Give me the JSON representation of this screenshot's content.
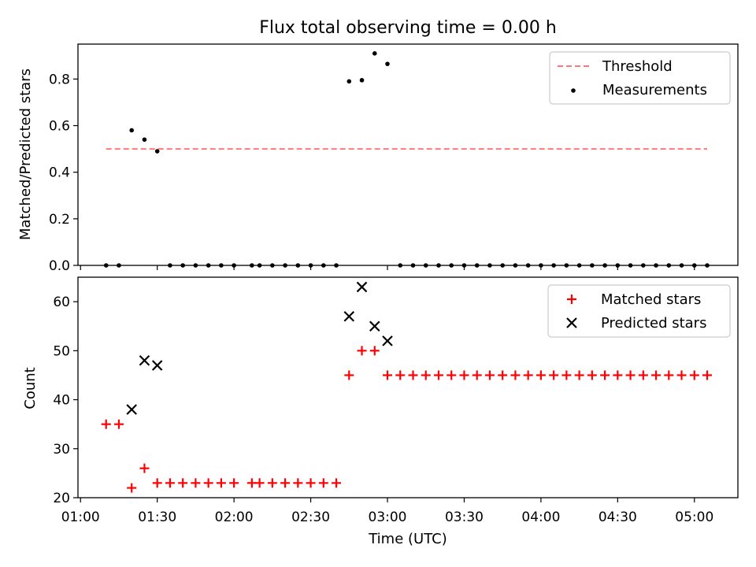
{
  "chart_data": [
    {
      "type": "scatter",
      "title": "Flux total observing time = 0.00 h",
      "ylabel": "Matched/Predicted stars",
      "xlabel": "",
      "ylim": [
        0,
        0.95
      ],
      "yticks": [
        0.0,
        0.2,
        0.4,
        0.6,
        0.8
      ],
      "ytick_labels": [
        "0.0",
        "0.2",
        "0.4",
        "0.6",
        "0.8"
      ],
      "legend_position": "top-right",
      "threshold": {
        "name": "Threshold",
        "value": 0.5,
        "x_range": [
          "01:10",
          "05:05"
        ],
        "color": "#ff7777"
      },
      "series": [
        {
          "name": "Measurements",
          "color": "#000000",
          "marker": "dot",
          "x": [
            "01:10",
            "01:15",
            "01:20",
            "01:25",
            "01:30",
            "01:35",
            "01:40",
            "01:45",
            "01:50",
            "01:55",
            "02:00",
            "02:07",
            "02:10",
            "02:15",
            "02:20",
            "02:25",
            "02:30",
            "02:35",
            "02:40",
            "02:45",
            "02:50",
            "02:55",
            "03:00",
            "03:05",
            "03:10",
            "03:15",
            "03:20",
            "03:25",
            "03:30",
            "03:35",
            "03:40",
            "03:45",
            "03:50",
            "03:55",
            "04:00",
            "04:05",
            "04:10",
            "04:15",
            "04:20",
            "04:25",
            "04:30",
            "04:35",
            "04:40",
            "04:45",
            "04:50",
            "04:55",
            "05:00",
            "05:05"
          ],
          "y": [
            0,
            0,
            0.58,
            0.54,
            0.49,
            0,
            0,
            0,
            0,
            0,
            0,
            0,
            0,
            0,
            0,
            0,
            0,
            0,
            0,
            0.79,
            0.795,
            0.91,
            0.865,
            0,
            0,
            0,
            0,
            0,
            0,
            0,
            0,
            0,
            0,
            0,
            0,
            0,
            0,
            0,
            0,
            0,
            0,
            0,
            0,
            0,
            0,
            0,
            0,
            0
          ]
        }
      ]
    },
    {
      "type": "scatter",
      "title": "",
      "ylabel": "Count",
      "xlabel": "Time (UTC)",
      "ylim": [
        20,
        65
      ],
      "yticks": [
        20,
        30,
        40,
        50,
        60
      ],
      "ytick_labels": [
        "20",
        "30",
        "40",
        "50",
        "60"
      ],
      "xlim": [
        "00:59",
        "05:17"
      ],
      "xticks": [
        "01:00",
        "01:30",
        "02:00",
        "02:30",
        "03:00",
        "03:30",
        "04:00",
        "04:30",
        "05:00"
      ],
      "xtick_labels": [
        "01:00",
        "01:30",
        "02:00",
        "02:30",
        "03:00",
        "03:30",
        "04:00",
        "04:30",
        "05:00"
      ],
      "legend_position": "top-right",
      "series": [
        {
          "name": "Matched stars",
          "color": "#ff0000",
          "marker": "plus",
          "x": [
            "01:10",
            "01:15",
            "01:20",
            "01:25",
            "01:30",
            "01:35",
            "01:40",
            "01:45",
            "01:50",
            "01:55",
            "02:00",
            "02:07",
            "02:10",
            "02:15",
            "02:20",
            "02:25",
            "02:30",
            "02:35",
            "02:40",
            "02:45",
            "02:50",
            "02:55",
            "03:00",
            "03:05",
            "03:10",
            "03:15",
            "03:20",
            "03:25",
            "03:30",
            "03:35",
            "03:40",
            "03:45",
            "03:50",
            "03:55",
            "04:00",
            "04:05",
            "04:10",
            "04:15",
            "04:20",
            "04:25",
            "04:30",
            "04:35",
            "04:40",
            "04:45",
            "04:50",
            "04:55",
            "05:00",
            "05:05"
          ],
          "y": [
            35,
            35,
            22,
            26,
            23,
            23,
            23,
            23,
            23,
            23,
            23,
            23,
            23,
            23,
            23,
            23,
            23,
            23,
            23,
            45,
            50,
            50,
            45,
            45,
            45,
            45,
            45,
            45,
            45,
            45,
            45,
            45,
            45,
            45,
            45,
            45,
            45,
            45,
            45,
            45,
            45,
            45,
            45,
            45,
            45,
            45,
            45,
            45
          ]
        },
        {
          "name": "Predicted stars",
          "color": "#000000",
          "marker": "x",
          "x": [
            "01:20",
            "01:25",
            "01:30",
            "02:45",
            "02:50",
            "02:55",
            "03:00"
          ],
          "y": [
            38,
            48,
            47,
            57,
            63,
            55,
            52
          ]
        }
      ]
    }
  ]
}
